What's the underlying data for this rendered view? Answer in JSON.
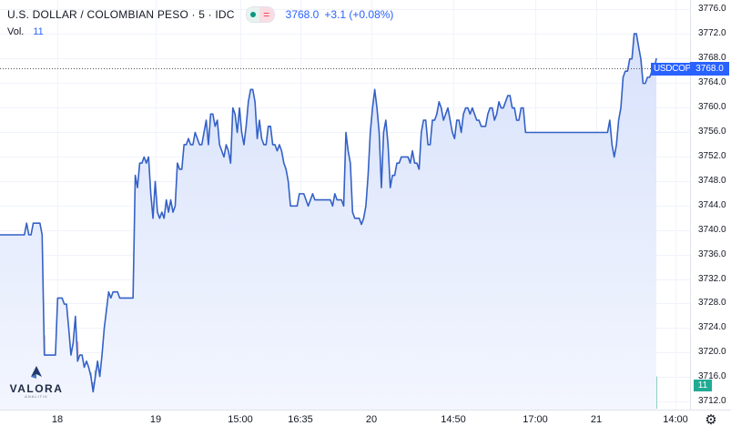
{
  "legend": {
    "title": "U.S. DOLLAR / COLOMBIAN PESO · 5 · IDC",
    "price": "3768.0",
    "change": "+3.1 (+0.08%)",
    "status_icon": "market-open-icon",
    "eq_symbol": "="
  },
  "volume_legend": {
    "label": "Vol.",
    "value": "11"
  },
  "symbol_tag": "USDCOP",
  "price_tag": "3768.0",
  "volume_tag": "11",
  "y_axis_labels": [
    "3776.0",
    "3772.0",
    "3768.0",
    "3764.0",
    "3760.0",
    "3756.0",
    "3752.0",
    "3748.0",
    "3744.0",
    "3740.0",
    "3736.0",
    "3732.0",
    "3728.0",
    "3724.0",
    "3720.0",
    "3716.0",
    "3712.0"
  ],
  "x_axis_labels": [
    "18",
    "19",
    "15:00",
    "16:35",
    "20",
    "14:50",
    "17:00",
    "21",
    "14:00"
  ],
  "logo": {
    "word": "VALORA",
    "sub": "ANALITIK"
  },
  "settings_icon": "gear-icon",
  "colors": {
    "line": "#3461c6",
    "area_top": "#d8e2fb",
    "area_bottom": "#f3f6fe",
    "volume_up": "#8fd0c1",
    "volume_down": "#f0a3a3",
    "accent": "#2962ff"
  },
  "chart_data": {
    "type": "area",
    "title": "U.S. DOLLAR / COLOMBIAN PESO · 5 · IDC",
    "ylim": [
      3710.7,
      3777.5
    ],
    "ymajor_ticks": [
      3776,
      3772,
      3768,
      3764,
      3760,
      3756,
      3752,
      3748,
      3744,
      3740,
      3736,
      3732,
      3728,
      3724,
      3720,
      3716,
      3712
    ],
    "series": [
      {
        "values": [
          3739.2,
          3739.2,
          3739.2,
          3739.2,
          3739.2,
          3739.2,
          3739.2,
          3739.2,
          3739.2,
          3739.2,
          3739.2,
          3739.2,
          3741.1,
          3739.2,
          3739.2,
          3741.1,
          3741.1,
          3741.1,
          3741.1,
          3739.2,
          3719.6,
          3719.6,
          3719.6,
          3719.6,
          3719.6,
          3719.6,
          3728.9,
          3728.9,
          3728.9,
          3727.9,
          3727.9,
          3723.9,
          3719.6,
          3721.6,
          3725.9,
          3718.6,
          3719.6,
          3719.6,
          3717.6,
          3718.6,
          3717.6,
          3716.1,
          3713.6,
          3716.1,
          3718.6,
          3716.1,
          3719.6,
          3723.9,
          3726.9,
          3729.9,
          3728.9,
          3729.9,
          3729.9,
          3729.9,
          3728.9,
          3728.9,
          3728.9,
          3728.9,
          3728.9,
          3728.9,
          3728.9,
          3748.9,
          3746.9,
          3750.9,
          3750.9,
          3751.9,
          3750.9,
          3751.9,
          3745.9,
          3741.9,
          3747.9,
          3742.9,
          3741.9,
          3742.9,
          3741.9,
          3744.9,
          3742.9,
          3744.9,
          3742.9,
          3743.9,
          3750.9,
          3749.9,
          3749.9,
          3753.9,
          3753.9,
          3754.9,
          3753.9,
          3753.9,
          3755.9,
          3754.9,
          3753.9,
          3753.9,
          3755.9,
          3757.9,
          3753.9,
          3758.9,
          3758.9,
          3756.9,
          3757.9,
          3753.9,
          3752.9,
          3751.9,
          3753.9,
          3752.9,
          3750.9,
          3759.9,
          3758.9,
          3755.9,
          3759.9,
          3755.9,
          3753.9,
          3756.9,
          3760.9,
          3762.9,
          3762.9,
          3760.9,
          3754.9,
          3757.9,
          3754.9,
          3753.9,
          3753.9,
          3756.9,
          3756.9,
          3753.9,
          3753.9,
          3752.9,
          3753.9,
          3752.9,
          3750.9,
          3749.9,
          3747.9,
          3743.9,
          3743.9,
          3743.9,
          3743.9,
          3745.9,
          3745.9,
          3745.9,
          3744.9,
          3743.9,
          3744.9,
          3745.9,
          3744.9,
          3744.9,
          3744.9,
          3744.9,
          3744.9,
          3744.9,
          3744.9,
          3744.9,
          3743.9,
          3745.9,
          3744.9,
          3744.9,
          3744.9,
          3743.9,
          3755.9,
          3752.9,
          3750.9,
          3742.9,
          3741.9,
          3741.9,
          3741.9,
          3740.9,
          3741.9,
          3743.9,
          3748.9,
          3755.9,
          3759.9,
          3762.9,
          3759.9,
          3755.9,
          3746.9,
          3755.9,
          3757.9,
          3753.9,
          3746.9,
          3748.9,
          3748.9,
          3750.9,
          3750.9,
          3751.9,
          3751.9,
          3751.9,
          3751.9,
          3750.9,
          3752.9,
          3750.9,
          3750.9,
          3749.9,
          3755.9,
          3757.9,
          3757.9,
          3753.9,
          3753.9,
          3757.9,
          3757.9,
          3758.9,
          3760.9,
          3759.9,
          3757.9,
          3758.9,
          3759.9,
          3757.9,
          3755.9,
          3754.9,
          3757.9,
          3757.9,
          3755.9,
          3758.9,
          3759.9,
          3759.9,
          3758.9,
          3759.9,
          3758.9,
          3757.9,
          3757.9,
          3756.9,
          3756.9,
          3756.9,
          3758.9,
          3759.9,
          3759.9,
          3757.9,
          3758.9,
          3760.9,
          3759.9,
          3759.9,
          3760.9,
          3761.9,
          3761.9,
          3759.9,
          3759.9,
          3757.9,
          3757.9,
          3759.9,
          3759.9,
          3755.9,
          3755.9,
          3755.9,
          3755.9,
          3755.9,
          3755.9,
          3755.9,
          3755.9,
          3755.9,
          3755.9,
          3755.9,
          3755.9,
          3755.9,
          3755.9,
          3755.9,
          3755.9,
          3755.9,
          3755.9,
          3755.9,
          3755.9,
          3755.9,
          3755.9,
          3755.9,
          3755.9,
          3755.9,
          3755.9,
          3755.9,
          3755.9,
          3755.9,
          3755.9,
          3755.9,
          3755.9,
          3755.9,
          3755.9,
          3755.9,
          3755.9,
          3755.9,
          3755.9,
          3757.9,
          3753.9,
          3751.9,
          3753.9,
          3757.9,
          3759.9,
          3764.9,
          3765.9,
          3765.9,
          3767.9,
          3767.9,
          3772.0,
          3772.0,
          3769.9,
          3767.9,
          3763.9,
          3763.9,
          3764.9,
          3764.9,
          3765.9,
          3765.9,
          3768.0
        ]
      }
    ],
    "volume": [
      1,
      1,
      1,
      1,
      1,
      1,
      1,
      1,
      1,
      1,
      1,
      1,
      1,
      1,
      1,
      1,
      1,
      1,
      1,
      1,
      1,
      1,
      1,
      1,
      1,
      1,
      1,
      1,
      1,
      1,
      1,
      1,
      1,
      1,
      1,
      1,
      1,
      1,
      1,
      1,
      1,
      1,
      1,
      1,
      1,
      1,
      1,
      1,
      1,
      1,
      1,
      1,
      1,
      1,
      1,
      1,
      1,
      1,
      1,
      1,
      1,
      1,
      1,
      1,
      1,
      1,
      1,
      1,
      1,
      1,
      1,
      1,
      1,
      1,
      1,
      1,
      1,
      1,
      1,
      1,
      1,
      1,
      1,
      1,
      1,
      1,
      1,
      1,
      1,
      1,
      1,
      1,
      1,
      1,
      1,
      1,
      1,
      1,
      1,
      1,
      1,
      1,
      1,
      1,
      1,
      1,
      1,
      1,
      1,
      1,
      1,
      1,
      1,
      1,
      1,
      1,
      1,
      1,
      1,
      1,
      1,
      1,
      1,
      1,
      1,
      1,
      1,
      1,
      1,
      1,
      1,
      1,
      1,
      1,
      1,
      1,
      1,
      1,
      1,
      1,
      1,
      1,
      1,
      1,
      1,
      1,
      1,
      1,
      1,
      1,
      1,
      1,
      1,
      1,
      1,
      1,
      1,
      1,
      1,
      1,
      1,
      1,
      1,
      1,
      1,
      1,
      1,
      1,
      1,
      1,
      1,
      1,
      1,
      1,
      1,
      1,
      1,
      1,
      1,
      1,
      1,
      1,
      1,
      1,
      1,
      1,
      1,
      1,
      1,
      1,
      1,
      1,
      1,
      1,
      1,
      1,
      1,
      1,
      1,
      1,
      1,
      1,
      1,
      1,
      1,
      1,
      1,
      1,
      1,
      1,
      1,
      1,
      1,
      1,
      1,
      1,
      1,
      1,
      1,
      1,
      1,
      1,
      1,
      1,
      1,
      1,
      1,
      1,
      1,
      1,
      1,
      1,
      1,
      1,
      1,
      1,
      1,
      1,
      1,
      1,
      1,
      1,
      1,
      1,
      1,
      1,
      1,
      1,
      1,
      1,
      1,
      1,
      1,
      1,
      1,
      1,
      1,
      1,
      1,
      1,
      1,
      1,
      1,
      1,
      1,
      1,
      1,
      1,
      1,
      1,
      1,
      1,
      1,
      1,
      1,
      1,
      1,
      1,
      1,
      1,
      1,
      1,
      1,
      1,
      1,
      1,
      1,
      1,
      1,
      1,
      1,
      1,
      1,
      1,
      1,
      1,
      1,
      1,
      1,
      1,
      1,
      1,
      1,
      1,
      1,
      1,
      1,
      1,
      1,
      1,
      1,
      1,
      1,
      1,
      1,
      1,
      1,
      1,
      1,
      1,
      1,
      1,
      1,
      1,
      1,
      1,
      1,
      1,
      1,
      1
    ],
    "volume_ylim": [
      0,
      120
    ]
  }
}
